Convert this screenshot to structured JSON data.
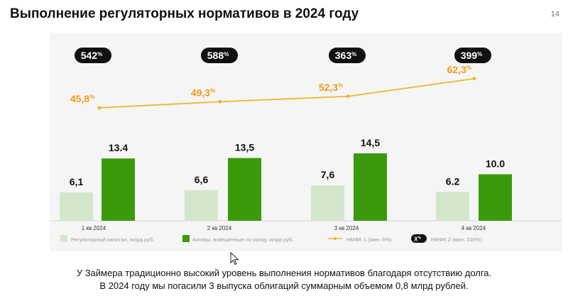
{
  "slide": {
    "title": "Выполнение регуляторных нормативов в 2024 году",
    "page_number": "14"
  },
  "footnote": {
    "line1": "У Займера традиционно высокий уровень выполнения нормативов благодаря отсутствию долга.",
    "line2": "В 2024 году мы погасили 3 выпуска облигаций суммарным объемом 0,8 млрд рублей."
  },
  "colors": {
    "capital": "#d3e6cc",
    "assets": "#3a9a0c",
    "n1": "#f0b530",
    "n1_label": "#f09a1a",
    "n2_pill": "#111111"
  },
  "chart_data": {
    "type": "bar",
    "categories": [
      "1 кв 2024",
      "2 кв 2024",
      "3 кв 2024",
      "4 кв 2024"
    ],
    "series": [
      {
        "name": "Регуляторный капитал, млрд руб.",
        "type": "bar",
        "values": [
          6.1,
          6.6,
          7.6,
          6.2
        ],
        "labels": [
          "6,1",
          "6,6",
          "7,6",
          "6.2"
        ]
      },
      {
        "name": "Активы, взвешенные по риску, млрд руб.",
        "type": "bar",
        "values": [
          13.4,
          13.5,
          14.5,
          10.0
        ],
        "labels": [
          "13.4",
          "13,5",
          "14,5",
          "10.0"
        ]
      },
      {
        "name": "НМФК 1 (мин. 6%)",
        "type": "line",
        "values": [
          45.8,
          49.3,
          52.3,
          62.3
        ],
        "labels": [
          "45,8",
          "49,3",
          "52,3",
          "62,3"
        ]
      },
      {
        "name": "НМФК 2 (мин. 100%)",
        "type": "badge",
        "values": [
          542,
          588,
          363,
          399
        ],
        "labels": [
          "542",
          "588",
          "363",
          "399"
        ]
      }
    ],
    "percent_sign": "%",
    "legend_badge": "X",
    "legend_position": "bottom",
    "grid": false
  }
}
